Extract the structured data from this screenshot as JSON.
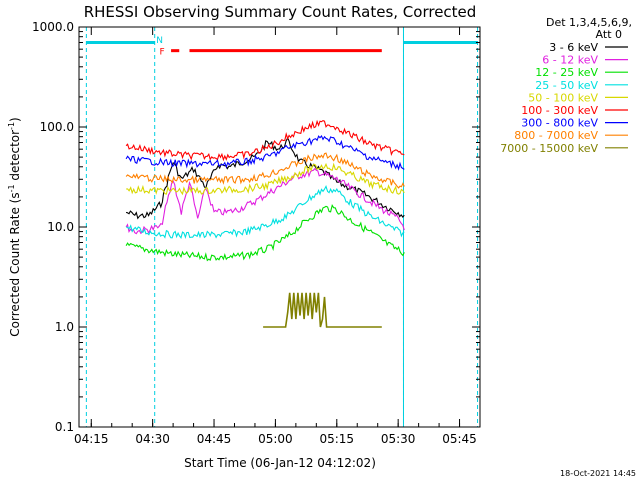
{
  "chart_data": {
    "type": "line",
    "title": "RHESSI Observing Summary Count Rates, Corrected",
    "xlabel": "Start Time (06-Jan-12 04:12:02)",
    "ylabel": "Corrected Count Rate (s",
    "ylabel_sup1": "-1",
    "ylabel_mid": " detector",
    "ylabel_sup2": "-1",
    "ylabel_end": ")",
    "yscale": "log",
    "ylim": [
      0.1,
      1000
    ],
    "xlim_minutes": [
      252,
      350
    ],
    "x_ticks": [
      {
        "label": "04:15",
        "minutes": 255
      },
      {
        "label": "04:30",
        "minutes": 270
      },
      {
        "label": "04:45",
        "minutes": 285
      },
      {
        "label": "05:00",
        "minutes": 300
      },
      {
        "label": "05:15",
        "minutes": 315
      },
      {
        "label": "05:30",
        "minutes": 330
      },
      {
        "label": "05:45",
        "minutes": 345
      }
    ],
    "y_ticks": [
      {
        "label": "0.1",
        "value": 0.1
      },
      {
        "label": "1.0",
        "value": 1
      },
      {
        "label": "10.0",
        "value": 10
      },
      {
        "label": "100.0",
        "value": 100
      },
      {
        "label": "1000.0",
        "value": 1000
      }
    ],
    "legend": {
      "placement": "right",
      "header": [
        "Det 1,3,4,5,6,9,",
        "Att 0"
      ],
      "entries": [
        {
          "label": "3 - 6 keV",
          "color": "#000000"
        },
        {
          "label": "6 - 12 keV",
          "color": "#e020e0"
        },
        {
          "label": "12 - 25 keV",
          "color": "#00e000"
        },
        {
          "label": "25 - 50 keV",
          "color": "#00e0e0"
        },
        {
          "label": "50 - 100 keV",
          "color": "#d8d800"
        },
        {
          "label": "100 - 300 keV",
          "color": "#ff0000"
        },
        {
          "label": "300 - 800 keV",
          "color": "#0000ff"
        },
        {
          "label": "800 - 7000 keV",
          "color": "#ff8000"
        },
        {
          "label": "7000 - 15000 keV",
          "color": "#808000"
        }
      ]
    },
    "series": [
      {
        "name": "3 - 6 keV",
        "color": "#000000",
        "x": [
          263.5,
          266,
          269,
          272,
          275,
          277,
          280,
          283,
          286,
          289,
          292,
          295,
          298,
          301,
          303,
          306,
          309,
          312,
          315,
          318,
          321,
          324,
          327,
          330,
          331.5
        ],
        "values": [
          14,
          13,
          13,
          17,
          45,
          30,
          38,
          25,
          42,
          40,
          45,
          50,
          70,
          60,
          72,
          45,
          40,
          35,
          28,
          25,
          22,
          19,
          16,
          14,
          13
        ]
      },
      {
        "name": "6 - 12 keV",
        "color": "#e020e0",
        "x": [
          263.5,
          266,
          269,
          272,
          275,
          277,
          279,
          281,
          283,
          285,
          288,
          291,
          295,
          300,
          305,
          310,
          315,
          320,
          325,
          330,
          331.5
        ],
        "values": [
          10,
          9,
          9.5,
          10,
          30,
          14,
          28,
          12,
          25,
          14,
          14,
          15,
          18,
          24,
          32,
          36,
          30,
          22,
          16,
          12,
          10
        ]
      },
      {
        "name": "12 - 25 keV",
        "color": "#00e000",
        "x": [
          263.5,
          268,
          273,
          278,
          283,
          288,
          293,
          298,
          303,
          308,
          312,
          315,
          318,
          323,
          328,
          331.5
        ],
        "values": [
          6.5,
          6,
          5.5,
          5.2,
          5,
          5,
          5.2,
          6,
          8,
          12,
          15.5,
          15,
          12,
          9,
          6.5,
          5.5
        ]
      },
      {
        "name": "25 - 50 keV",
        "color": "#00e0e0",
        "x": [
          263.5,
          268,
          273,
          278,
          283,
          288,
          293,
          298,
          303,
          308,
          312,
          315,
          318,
          323,
          328,
          331.5
        ],
        "values": [
          10,
          9,
          8.5,
          8.3,
          8.3,
          8.5,
          9,
          10.5,
          13,
          19,
          24,
          23,
          18,
          13,
          10,
          8.5
        ]
      },
      {
        "name": "50 - 100 keV",
        "color": "#d8d800",
        "x": [
          263.5,
          268,
          273,
          278,
          283,
          288,
          293,
          298,
          303,
          308,
          312,
          315,
          318,
          323,
          328,
          331.5
        ],
        "values": [
          24,
          23.5,
          23,
          23,
          23,
          23.5,
          24,
          26,
          31,
          38,
          41,
          39,
          34,
          27,
          24,
          22
        ]
      },
      {
        "name": "100 - 300 keV",
        "color": "#ff0000",
        "x": [
          263.5,
          268,
          273,
          278,
          283,
          288,
          293,
          298,
          303,
          308,
          312,
          315,
          318,
          323,
          328,
          331.5
        ],
        "values": [
          65,
          60,
          55,
          52,
          51,
          51,
          53,
          62,
          80,
          100,
          110,
          100,
          85,
          68,
          58,
          54
        ]
      },
      {
        "name": "300 - 800 keV",
        "color": "#0000ff",
        "x": [
          263.5,
          268,
          273,
          278,
          283,
          288,
          293,
          298,
          303,
          308,
          312,
          315,
          318,
          323,
          328,
          331.5
        ],
        "values": [
          48,
          46,
          44,
          43,
          43,
          43,
          45,
          50,
          62,
          72,
          78,
          72,
          62,
          50,
          43,
          40
        ]
      },
      {
        "name": "800 - 7000 keV",
        "color": "#ff8000",
        "x": [
          263.5,
          268,
          273,
          278,
          283,
          288,
          293,
          298,
          303,
          308,
          312,
          315,
          318,
          323,
          328,
          331.5
        ],
        "values": [
          32,
          31,
          30,
          29.5,
          29.5,
          29.5,
          30,
          33,
          40,
          48,
          52,
          49,
          42,
          33,
          28,
          25
        ]
      },
      {
        "name": "7000 - 15000 keV",
        "color": "#808000",
        "x": [
          297,
          298,
          299,
          300,
          300.5,
          301,
          301.5,
          302,
          302.5,
          303,
          303.5,
          304,
          304.5,
          305,
          305.5,
          306,
          306.5,
          307,
          307.5,
          308,
          308.5,
          309,
          309.5,
          310,
          310.5,
          311,
          311.5,
          312,
          312.5,
          313,
          313.5,
          314,
          315,
          316,
          317,
          318,
          319,
          320,
          321,
          322,
          323,
          324,
          325,
          326
        ],
        "values": [
          1,
          1,
          1,
          1,
          1,
          1,
          1,
          1,
          1,
          1.4,
          2.2,
          1.2,
          2.2,
          1.2,
          2.2,
          1.3,
          2.2,
          1.2,
          2.2,
          1.3,
          2.2,
          1.2,
          2.2,
          1.4,
          2.2,
          1,
          1.2,
          2,
          1,
          1,
          1,
          1,
          1,
          1,
          1,
          1,
          1,
          1,
          1,
          1,
          1,
          1,
          1,
          1
        ]
      }
    ],
    "annotations": [
      {
        "label": "N",
        "color": "#00cfe0",
        "at_minutes": 271.7,
        "value": 760
      },
      {
        "label": "F",
        "color": "#ff0000",
        "at_minutes": 272.3,
        "value": 580
      }
    ],
    "flare_bars": [
      {
        "start": 274.5,
        "end": 276.5,
        "value": 580
      },
      {
        "start": 279,
        "end": 326,
        "value": 580
      }
    ],
    "night_intervals": [
      {
        "start": 253.8,
        "end": 270.5
      },
      {
        "start": 331.3,
        "end": 349.4
      }
    ],
    "night_level": 700,
    "footer": "18-Oct-2021 14:45"
  }
}
